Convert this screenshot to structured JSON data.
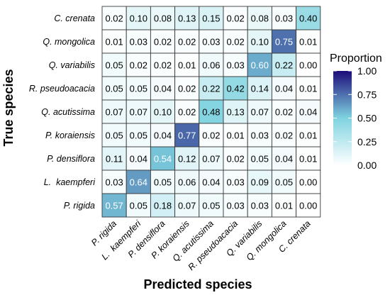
{
  "chart_data": {
    "type": "heatmap",
    "title": "",
    "xlabel": "Predicted species",
    "ylabel": "True species",
    "x_categories": [
      "P. rigida",
      "L.  kaempferi",
      "P. densiflora",
      "P. koraiensis",
      "Q. acutissima",
      "R. pseudoacacia",
      "Q. variabilis",
      "Q. mongolica",
      "C. crenata"
    ],
    "y_categories": [
      "C. crenata",
      "Q. mongolica",
      "Q. variabilis",
      "R. pseudoacacia",
      "Q. acutissima",
      "P. koraiensis",
      "P. densiflora",
      "L.  kaempferi",
      "P. rigida"
    ],
    "values": [
      [
        0.02,
        0.1,
        0.08,
        0.13,
        0.15,
        0.02,
        0.08,
        0.03,
        0.4
      ],
      [
        0.01,
        0.03,
        0.02,
        0.02,
        0.03,
        0.02,
        0.1,
        0.75,
        0.01
      ],
      [
        0.05,
        0.02,
        0.02,
        0.01,
        0.06,
        0.03,
        0.6,
        0.22,
        0.0
      ],
      [
        0.05,
        0.05,
        0.04,
        0.02,
        0.22,
        0.42,
        0.14,
        0.04,
        0.01
      ],
      [
        0.07,
        0.07,
        0.1,
        0.02,
        0.48,
        0.13,
        0.07,
        0.02,
        0.04
      ],
      [
        0.05,
        0.05,
        0.04,
        0.77,
        0.02,
        0.01,
        0.03,
        0.02,
        0.01
      ],
      [
        0.11,
        0.04,
        0.54,
        0.12,
        0.07,
        0.02,
        0.05,
        0.04,
        0.01
      ],
      [
        0.03,
        0.64,
        0.05,
        0.06,
        0.04,
        0.03,
        0.09,
        0.05,
        0.0
      ],
      [
        0.57,
        0.05,
        0.18,
        0.07,
        0.05,
        0.03,
        0.03,
        0.01,
        0.0
      ]
    ],
    "value_format": "2 decimals",
    "legend": {
      "title": "Proportion",
      "placement": "right",
      "ticks": [
        "1.00",
        "0.75",
        "0.50",
        "0.25",
        "0.00"
      ],
      "range": [
        0,
        1
      ]
    },
    "colors": {
      "low": "#ffffff",
      "mid": "#7fd3e0",
      "high": "#1d0c7a",
      "text_dark": "#000000",
      "text_light": "#ffffff",
      "grid": "#3a3a3a"
    },
    "grid": true
  }
}
